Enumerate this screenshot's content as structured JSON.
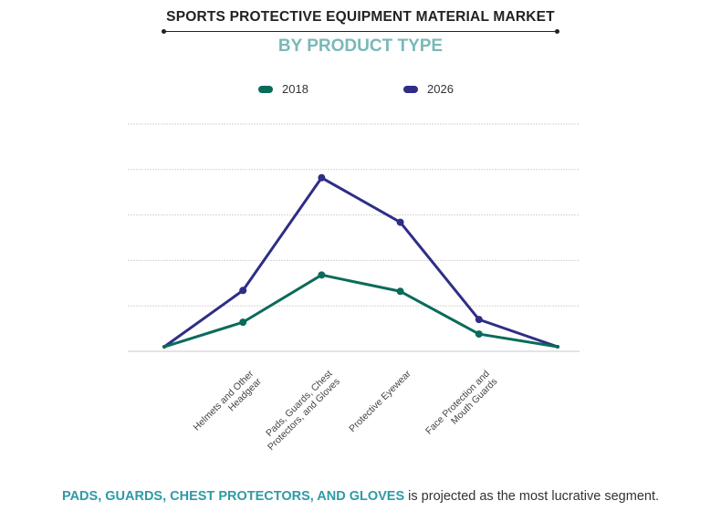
{
  "chart_data": {
    "type": "line",
    "title": "SPORTS PROTECTIVE EQUIPMENT MATERIAL MARKET",
    "subtitle": "BY PRODUCT TYPE",
    "categories": [
      "",
      "Helmets and Other Headgear",
      "Pads, Guards, Chest Protectors, and Gloves",
      "Protective Eyewear",
      "Face Protection and Mouth Guards",
      ""
    ],
    "series": [
      {
        "name": "2018",
        "color": "#0b6b5a",
        "values": [
          0.1,
          0.64,
          1.68,
          1.32,
          0.38,
          0.1
        ]
      },
      {
        "name": "2026",
        "color": "#2e2e86",
        "values": [
          0.1,
          1.34,
          3.82,
          2.84,
          0.7,
          0.1
        ]
      }
    ],
    "ylim": [
      0,
      5
    ],
    "y_tick_labels_shown": false,
    "grid": true,
    "legend": "top-center"
  },
  "footer": {
    "highlight": "PADS, GUARDS, CHEST PROTECTORS, AND GLOVES",
    "text": " is projected as the most lucrative segment."
  }
}
